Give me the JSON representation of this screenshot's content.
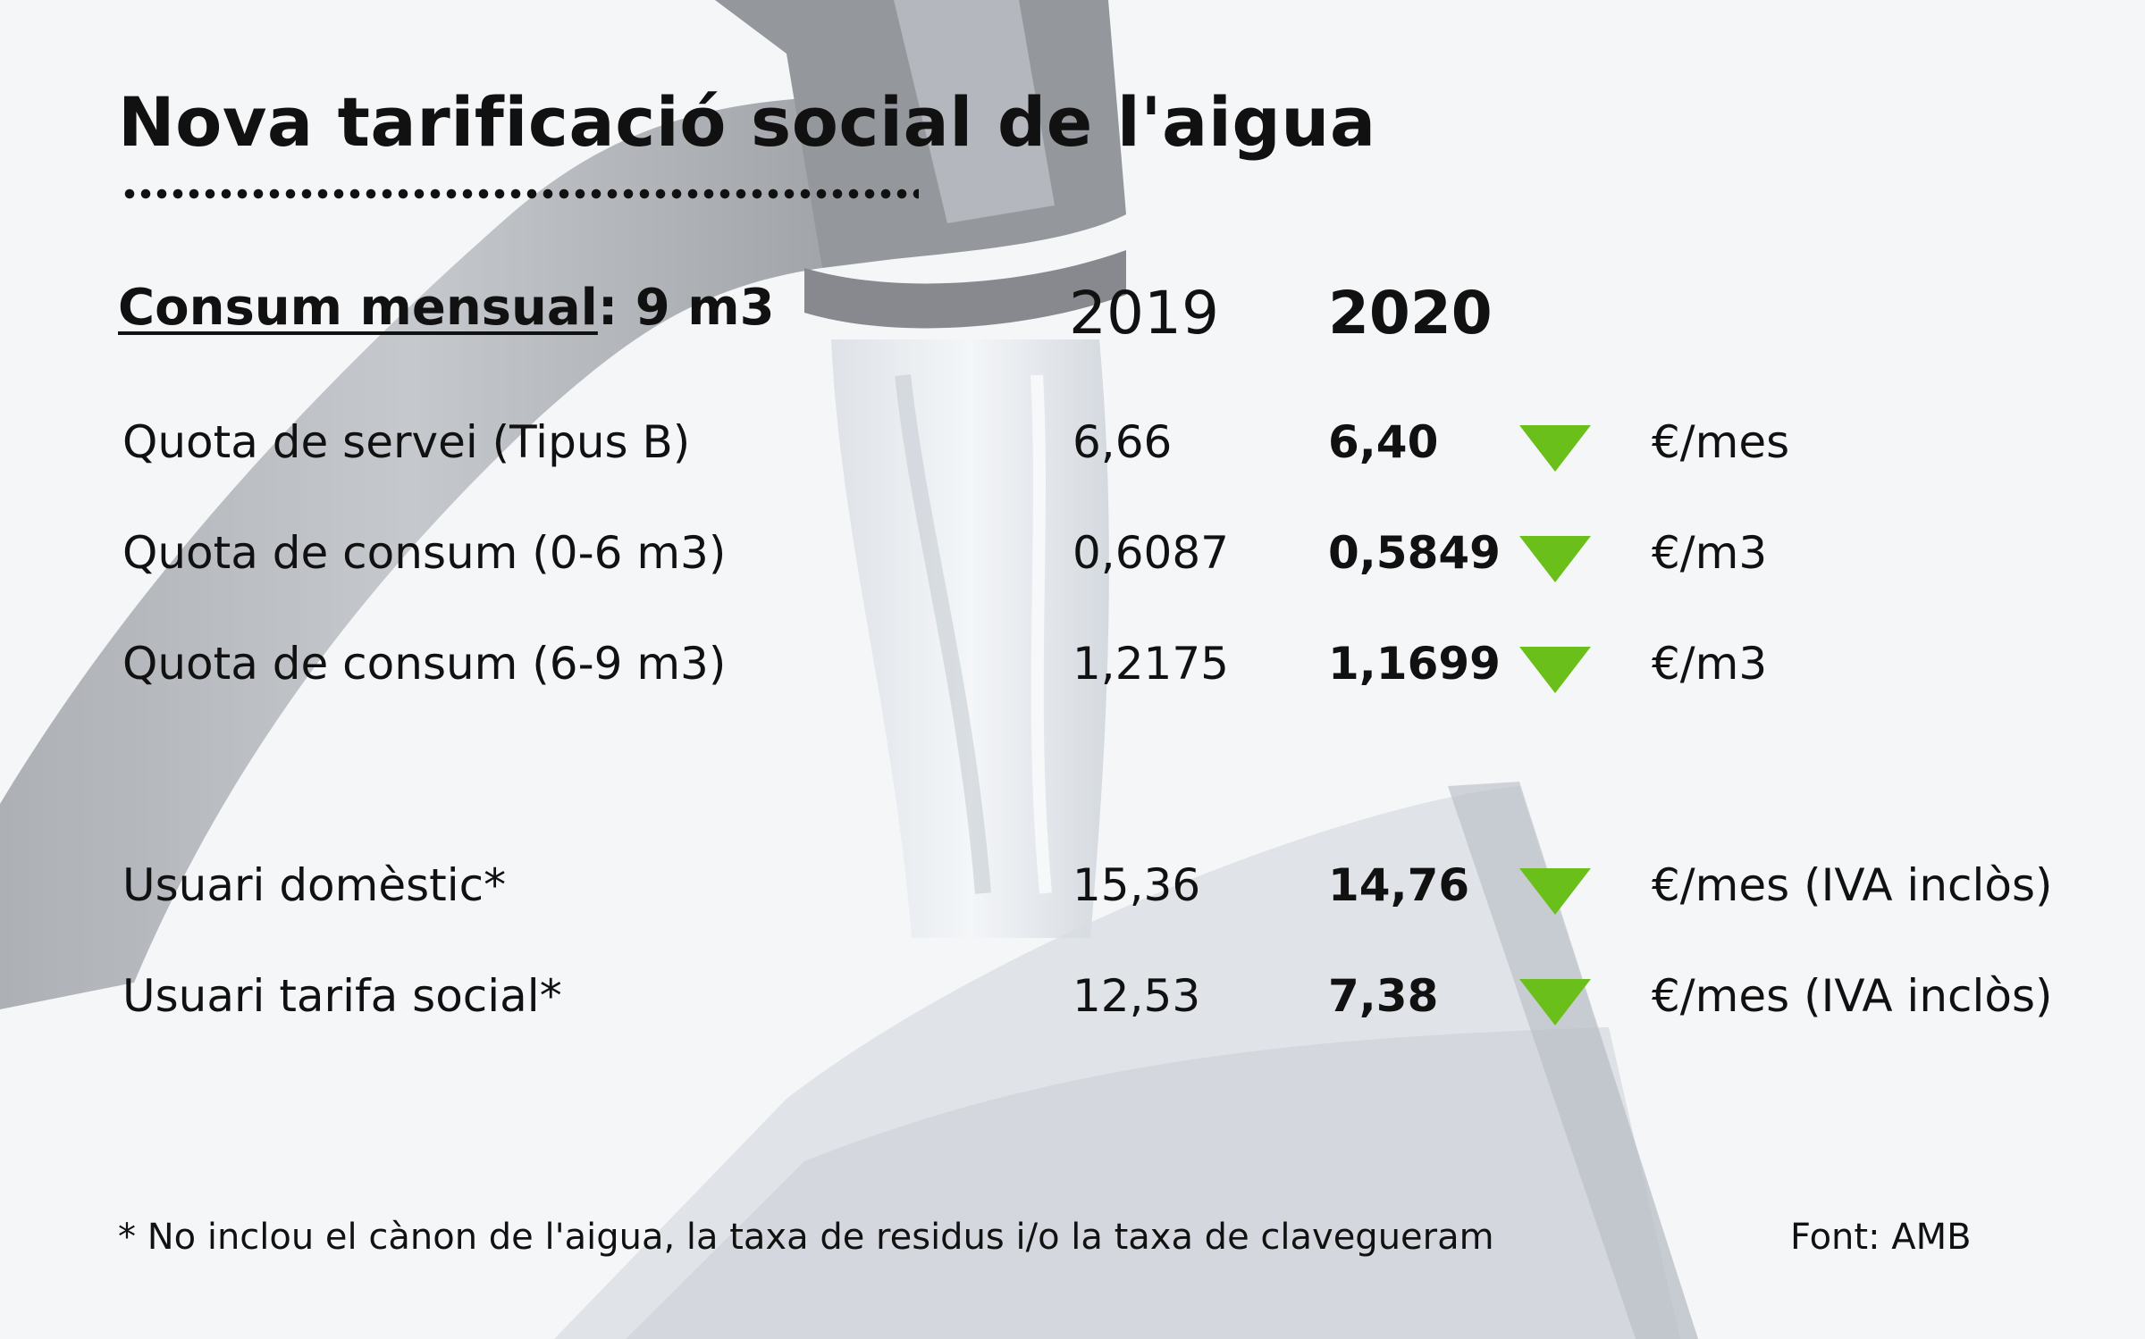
{
  "title": "Nova tarificació social de l'aigua",
  "consum": {
    "label": "Consum mensual",
    "value": ": 9 m3"
  },
  "years": {
    "y2019": "2019",
    "y2020": "2020"
  },
  "rows": [
    {
      "label": "Quota de servei (Tipus B)",
      "v2019": "6,66",
      "v2020": "6,40",
      "unit": "€/mes"
    },
    {
      "label": "Quota de consum (0-6 m3)",
      "v2019": "0,6087",
      "v2020": "0,5849",
      "unit": "€/m3"
    },
    {
      "label": "Quota de consum (6-9 m3)",
      "v2019": "1,2175",
      "v2020": "1,1699",
      "unit": "€/m3"
    },
    {
      "label": "Usuari domèstic*",
      "v2019": "15,36",
      "v2020": "14,76",
      "unit": "€/mes (IVA inclòs)"
    },
    {
      "label": "Usuari tarifa social*",
      "v2019": "12,53",
      "v2020": "7,38",
      "unit": "€/mes (IVA inclòs)"
    }
  ],
  "indicator_icon": "triangle-down-icon",
  "indicator_color": "#6bbf1a",
  "footnote": "* No inclou el cànon de l'aigua, la taxa de residus i/o la taxa de clavegueram",
  "source": "Font: AMB"
}
